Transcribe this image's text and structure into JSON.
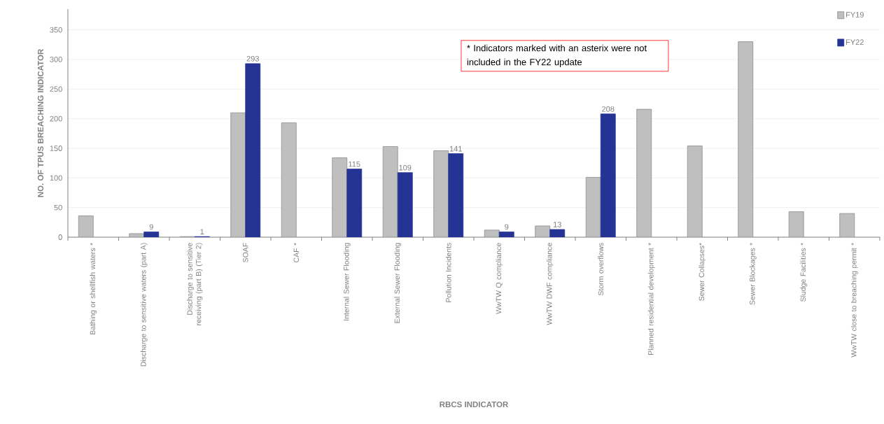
{
  "chart_data": {
    "type": "bar",
    "xlabel": "RBCS INDICATOR",
    "ylabel": "NO. OF TPUS BREACHING INDICATOR",
    "categories": [
      "Bathing or shellfish waters *",
      "Discharge to sensitive waters (part A)",
      "Discharge to sensitive receiving  (part B) (Tier 2)",
      "SOAF",
      "CAF *",
      "Internal Sewer Flooding",
      "External Sewer Flooding",
      "Pollution Incidents",
      "WwTW Q compliance",
      "WwTW DWF compliance",
      "Storm overflows",
      "Planned residential development *",
      "Sewer Collapses*",
      "Sewer Blockages *",
      "Sludge Facilities *",
      "WwTW close to breaching permit *"
    ],
    "series": [
      {
        "name": "FY19",
        "color": "#bfbfbf",
        "values": [
          36,
          6,
          1,
          210,
          193,
          134,
          153,
          146,
          12,
          19,
          101,
          216,
          154,
          330,
          43,
          40
        ]
      },
      {
        "name": "FY22",
        "color": "#253494",
        "values": [
          null,
          9,
          1,
          293,
          null,
          115,
          109,
          141,
          9,
          13,
          208,
          null,
          null,
          null,
          null,
          null
        ],
        "value_labels": [
          null,
          "9",
          "1",
          "293",
          null,
          "115",
          "109",
          "141",
          "9",
          "13",
          "208",
          null,
          null,
          null,
          null,
          null
        ]
      }
    ],
    "ylim": [
      0,
      385
    ],
    "yticks": [
      0,
      50,
      100,
      150,
      200,
      250,
      300,
      350
    ],
    "grid": "y",
    "legend": "top right",
    "annotations": [
      "* Indicators marked with an asterix were not included in the FY22 update"
    ]
  }
}
